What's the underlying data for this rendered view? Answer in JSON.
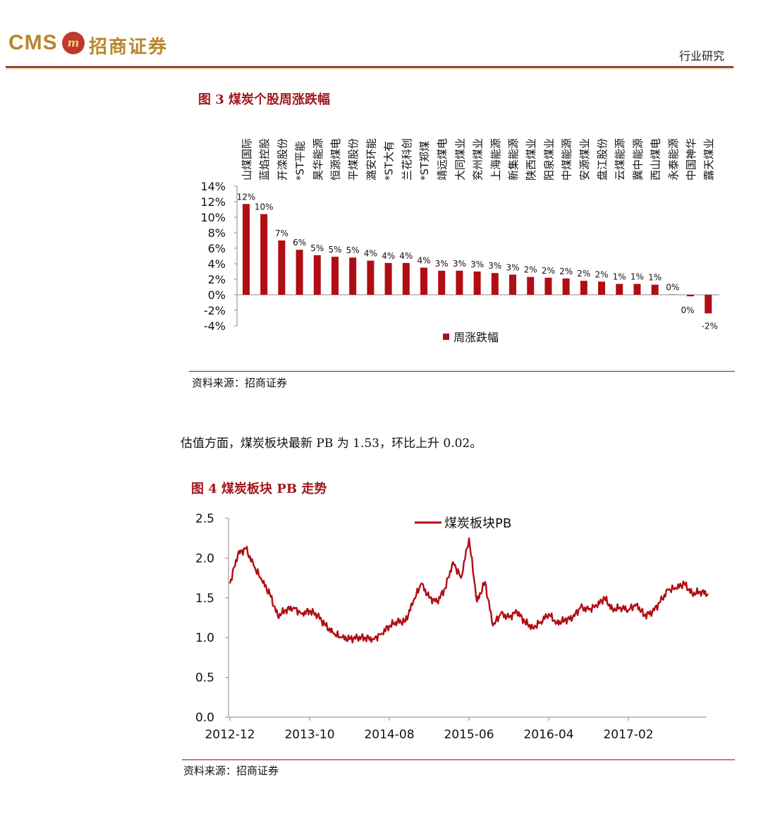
{
  "header": {
    "logo_text": "CMS",
    "logo_badge": "m",
    "logo_cn": "招商证券",
    "section": "行业研究"
  },
  "fig3": {
    "title": "图 3  煤炭个股周涨跌幅",
    "source": "资料来源：招商证券"
  },
  "body_text": "估值方面，煤炭板块最新 PB 为 1.53，环比上升 0.02。",
  "fig4": {
    "title": "图 4  煤炭板块 PB 走势",
    "source": "资料来源：招商证券"
  },
  "colors": {
    "accent": "#a0181c",
    "bar": "#b00e14"
  },
  "chart_data": [
    {
      "type": "bar",
      "title": "图 3  煤炭个股周涨跌幅",
      "categories": [
        "山煤国际",
        "蓝焰控股",
        "开滦股份",
        "*ST平能",
        "昊华能源",
        "恒源煤电",
        "平煤股份",
        "潞安环能",
        "*ST大有",
        "兰花科创",
        "*ST郑煤",
        "靖远煤电",
        "大同煤业",
        "兖州煤业",
        "上海能源",
        "新集能源",
        "陕西煤业",
        "阳泉煤业",
        "中煤能源",
        "安源煤业",
        "盘江股份",
        "云煤能源",
        "冀中能源",
        "西山煤电",
        "永泰能源",
        "中国神华",
        "露天煤业"
      ],
      "series": [
        {
          "name": "周涨跌幅",
          "values": [
            11.7,
            10.4,
            7.0,
            5.8,
            5.1,
            4.9,
            4.8,
            4.4,
            4.1,
            4.1,
            3.5,
            3.1,
            3.1,
            3.0,
            2.8,
            2.6,
            2.3,
            2.2,
            2.1,
            1.8,
            1.7,
            1.4,
            1.4,
            1.3,
            0.05,
            -0.2,
            -2.4
          ],
          "labels": [
            "12%",
            "10%",
            "7%",
            "6%",
            "5%",
            "5%",
            "5%",
            "4%",
            "4%",
            "4%",
            "4%",
            "3%",
            "3%",
            "3%",
            "3%",
            "3%",
            "2%",
            "2%",
            "2%",
            "2%",
            "2%",
            "1%",
            "1%",
            "1%",
            "0%",
            "0%",
            "-2%"
          ]
        }
      ],
      "yticks": [
        "14%",
        "12%",
        "10%",
        "8%",
        "6%",
        "4%",
        "2%",
        "0%",
        "-2%",
        "-4%"
      ],
      "ylim": [
        -4,
        14
      ],
      "legend": "bottom-center"
    },
    {
      "type": "line",
      "title": "图 4  煤炭板块 PB 走势",
      "xticks": [
        "2012-12",
        "2013-10",
        "2014-08",
        "2015-06",
        "2016-04",
        "2017-02"
      ],
      "yticks": [
        "2.5",
        "2.0",
        "1.5",
        "1.0",
        "0.5",
        "0.0"
      ],
      "ylim": [
        0,
        2.5
      ],
      "legend": "top-center",
      "series": [
        {
          "name": "煤炭板块PB",
          "x": [
            "2012-12",
            "2013-01",
            "2013-02",
            "2013-03",
            "2013-04",
            "2013-05",
            "2013-06",
            "2013-07",
            "2013-08",
            "2013-09",
            "2013-10",
            "2013-11",
            "2013-12",
            "2014-01",
            "2014-02",
            "2014-03",
            "2014-04",
            "2014-05",
            "2014-06",
            "2014-07",
            "2014-08",
            "2014-09",
            "2014-10",
            "2014-11",
            "2014-12",
            "2015-01",
            "2015-02",
            "2015-03",
            "2015-04",
            "2015-05",
            "2015-06",
            "2015-07",
            "2015-08",
            "2015-09",
            "2015-10",
            "2015-11",
            "2015-12",
            "2016-01",
            "2016-02",
            "2016-03",
            "2016-04",
            "2016-05",
            "2016-06",
            "2016-07",
            "2016-08",
            "2016-09",
            "2016-10",
            "2016-11",
            "2016-12",
            "2017-01",
            "2017-02",
            "2017-03",
            "2017-04",
            "2017-05",
            "2017-06",
            "2017-07",
            "2017-08",
            "2017-09",
            "2017-10",
            "2017-11",
            "2017-12"
          ],
          "values": [
            1.68,
            2.05,
            2.12,
            1.9,
            1.72,
            1.55,
            1.27,
            1.35,
            1.38,
            1.3,
            1.34,
            1.28,
            1.15,
            1.05,
            1.0,
            0.98,
            1.0,
            1.0,
            0.98,
            1.05,
            1.15,
            1.2,
            1.2,
            1.45,
            1.68,
            1.5,
            1.45,
            1.62,
            1.95,
            1.75,
            2.25,
            1.45,
            1.7,
            1.15,
            1.3,
            1.25,
            1.33,
            1.2,
            1.12,
            1.2,
            1.3,
            1.18,
            1.22,
            1.25,
            1.38,
            1.35,
            1.4,
            1.5,
            1.35,
            1.38,
            1.35,
            1.42,
            1.28,
            1.32,
            1.45,
            1.6,
            1.62,
            1.68,
            1.55,
            1.58,
            1.55
          ]
        }
      ]
    }
  ]
}
